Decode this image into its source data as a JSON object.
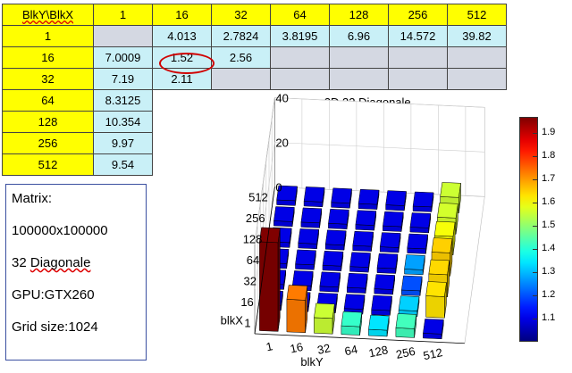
{
  "table": {
    "corner_label": "BlkY\\BlkX",
    "col_headers": [
      "1",
      "16",
      "32",
      "64",
      "128",
      "256",
      "512"
    ],
    "rows": [
      {
        "header": "1",
        "cells": [
          "",
          "4.013",
          "2.7824",
          "3.8195",
          "6.96",
          "14.572",
          "39.82"
        ]
      },
      {
        "header": "16",
        "cells": [
          "7.0009",
          "1.52",
          "2.56",
          "",
          "",
          "",
          ""
        ]
      },
      {
        "header": "32",
        "cells": [
          "7.19",
          "2.11",
          "",
          "",
          "",
          "",
          ""
        ]
      },
      {
        "header": "64",
        "cells": [
          "8.3125"
        ]
      },
      {
        "header": "128",
        "cells": [
          "10.354"
        ]
      },
      {
        "header": "256",
        "cells": [
          "9.97"
        ]
      },
      {
        "header": "512",
        "cells": [
          "9.54"
        ]
      }
    ],
    "highlighted_value": "1.52"
  },
  "info": {
    "line1": "Matrix:",
    "line2": "100000x100000",
    "line3_num": "32",
    "line3_word": "Diagonale",
    "line4": "GPU:GTX260",
    "line5": "Grid size:1024"
  },
  "chart_data": {
    "type": "bar3d",
    "title": "Sparse 2D 32 Diagonale",
    "xlabel": "blkY",
    "ylabel": "blkX",
    "x_ticks": [
      "1",
      "16",
      "32",
      "64",
      "128",
      "256",
      "512"
    ],
    "y_ticks": [
      "1",
      "16",
      "32",
      "64",
      "128",
      "256",
      "512"
    ],
    "z_ticks": [
      "0",
      "20",
      "40"
    ],
    "zlim": [
      0,
      40
    ],
    "colormap": "jet",
    "colorbar_ticks": [
      "1.1",
      "1.2",
      "1.3",
      "1.4",
      "1.5",
      "1.6",
      "1.7",
      "1.8",
      "1.9"
    ],
    "colorbar_range": [
      1.0,
      1.97
    ],
    "values": [
      [
        39.82,
        14.572,
        6.96,
        3.8195,
        2.7824,
        4.013,
        1.0
      ],
      [
        1.0,
        1.0,
        1.0,
        1.0,
        1.0,
        2.56,
        9.54
      ],
      [
        1.0,
        1.0,
        1.0,
        1.0,
        1.0,
        1.52,
        9.97
      ],
      [
        1.0,
        1.0,
        1.0,
        1.0,
        1.0,
        2.11,
        10.354
      ],
      [
        1.0,
        1.0,
        1.0,
        1.0,
        1.0,
        1.0,
        8.3125
      ],
      [
        1.0,
        1.0,
        1.0,
        1.0,
        1.0,
        1.0,
        7.19
      ],
      [
        1.0,
        1.0,
        1.0,
        1.0,
        1.0,
        1.0,
        7.0009
      ]
    ]
  }
}
